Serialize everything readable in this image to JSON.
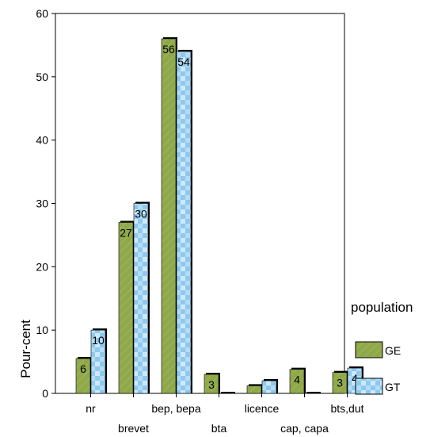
{
  "chart_data": {
    "type": "bar",
    "categories": [
      "nr",
      "brevet",
      "bep, bepa",
      "bta",
      "licence",
      "cap, capa",
      "bts,dut"
    ],
    "series": [
      {
        "name": "GE",
        "values": [
          5.5,
          27,
          56,
          3,
          1.2,
          3.8,
          3.3
        ],
        "labels": [
          "6",
          "27",
          "56",
          "3",
          "",
          "4",
          "3"
        ],
        "color": "#8ea84a"
      },
      {
        "name": "GT",
        "values": [
          10,
          30,
          54,
          0,
          2,
          0,
          4
        ],
        "labels": [
          "10",
          "30",
          "54",
          "",
          "",
          "",
          "4"
        ],
        "color": "#8ec8ee"
      }
    ],
    "ylabel": "Pour-cent",
    "xlabel": "",
    "ylim": [
      0,
      60
    ],
    "yticks": [
      0,
      10,
      20,
      30,
      40,
      50,
      60
    ],
    "legend": {
      "title": "population",
      "placement": "right"
    },
    "grid": false
  }
}
